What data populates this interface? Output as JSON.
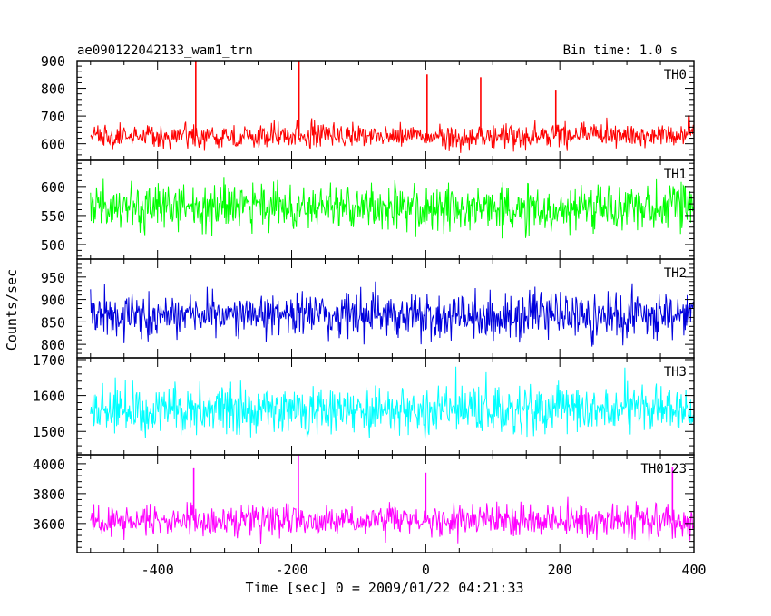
{
  "header": {
    "title": "ae090122042133_wam1_trn",
    "bin_time": "Bin time: 1.0 s"
  },
  "chart_data": {
    "type": "line",
    "xlabel": "Time [sec] 0 = 2009/01/22 04:21:33",
    "ylabel": "Counts/sec",
    "xlim": [
      -520,
      400
    ],
    "x_ticks": [
      -400,
      -200,
      0,
      200,
      400
    ],
    "x_range": [
      -500,
      399
    ],
    "bin": 1.0,
    "grid": false,
    "panels": [
      {
        "name": "TH0",
        "color": "#ff0000",
        "ylim": [
          540,
          900
        ],
        "y_ticks": [
          600,
          700,
          800,
          900
        ],
        "mean": 628,
        "scatter": 22,
        "range": [
          560,
          800
        ],
        "spikes": [
          {
            "x": -343,
            "y": 900
          },
          {
            "x": -189,
            "y": 900
          },
          {
            "x": 2,
            "y": 850
          },
          {
            "x": 82,
            "y": 840
          },
          {
            "x": 194,
            "y": 795
          }
        ]
      },
      {
        "name": "TH1",
        "color": "#00ff00",
        "ylim": [
          475,
          645
        ],
        "y_ticks": [
          500,
          550,
          600
        ],
        "mean": 563,
        "scatter": 20,
        "range": [
          480,
          645
        ],
        "spikes": []
      },
      {
        "name": "TH2",
        "color": "#0000dd",
        "ylim": [
          770,
          990
        ],
        "y_ticks": [
          800,
          850,
          900,
          950
        ],
        "mean": 865,
        "scatter": 25,
        "range": [
          775,
          990
        ],
        "spikes": []
      },
      {
        "name": "TH3",
        "color": "#00ffff",
        "ylim": [
          1435,
          1705
        ],
        "y_ticks": [
          1500,
          1600,
          1700
        ],
        "mean": 1560,
        "scatter": 35,
        "range": [
          1440,
          1705
        ],
        "spikes": []
      },
      {
        "name": "TH0123",
        "color": "#ff00ff",
        "ylim": [
          3405,
          4060
        ],
        "y_ticks": [
          3600,
          3800,
          4000
        ],
        "mean": 3620,
        "scatter": 55,
        "range": [
          3420,
          3960
        ],
        "spikes": [
          {
            "x": -190,
            "y": 4060
          },
          {
            "x": -346,
            "y": 3970
          },
          {
            "x": 0,
            "y": 3940
          },
          {
            "x": 368,
            "y": 3975
          }
        ]
      }
    ]
  }
}
